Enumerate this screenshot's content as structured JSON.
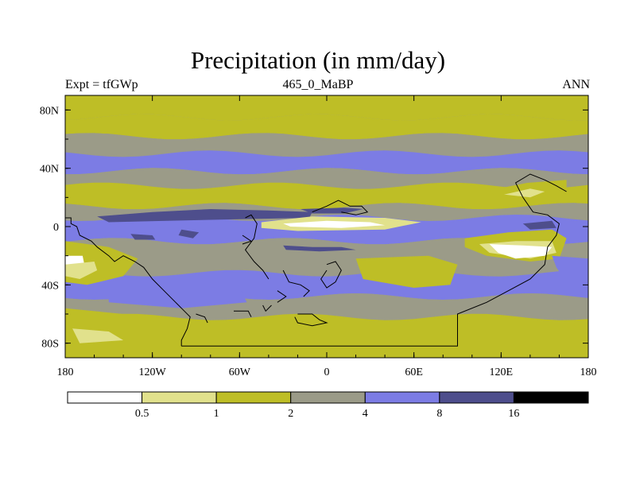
{
  "chart_data": {
    "type": "heatmap",
    "title": "Precipitation (in mm/day)",
    "left_label": "Expt = tfGWp",
    "center_label": "465_0_MaBP",
    "right_label": "ANN",
    "x_axis": {
      "range": [
        -180,
        180
      ],
      "ticks": [
        {
          "value": -180,
          "label": "180"
        },
        {
          "value": -120,
          "label": "120W"
        },
        {
          "value": -60,
          "label": "60W"
        },
        {
          "value": 0,
          "label": "0"
        },
        {
          "value": 60,
          "label": "60E"
        },
        {
          "value": 120,
          "label": "120E"
        },
        {
          "value": 180,
          "label": "180"
        }
      ]
    },
    "y_axis": {
      "range": [
        -90,
        90
      ],
      "ticks": [
        {
          "value": 80,
          "label": "80N"
        },
        {
          "value": 40,
          "label": "40N"
        },
        {
          "value": 0,
          "label": "0"
        },
        {
          "value": -40,
          "label": "40S"
        },
        {
          "value": -80,
          "label": "80S"
        }
      ]
    },
    "colorbar": {
      "levels": [
        "0.5",
        "1",
        "2",
        "4",
        "8",
        "16"
      ],
      "colors": [
        "#ffffff",
        "#e1e18c",
        "#bebe26",
        "#9b9b88",
        "#7c7ce4",
        "#4e4e8c",
        "#000000"
      ]
    },
    "zonal_bands": [
      {
        "lat_from": 90,
        "lat_to": 75,
        "category": 2
      },
      {
        "lat_from": 75,
        "lat_to": 62,
        "category": 2
      },
      {
        "lat_from": 62,
        "lat_to": 50,
        "category": 3
      },
      {
        "lat_from": 50,
        "lat_to": 38,
        "category": 4
      },
      {
        "lat_from": 38,
        "lat_to": 28,
        "category": 3
      },
      {
        "lat_from": 28,
        "lat_to": 14,
        "category": 2
      },
      {
        "lat_from": 14,
        "lat_to": 6,
        "category": 3
      },
      {
        "lat_from": 6,
        "lat_to": -10,
        "category": 4
      },
      {
        "lat_from": -10,
        "lat_to": -32,
        "category": 3
      },
      {
        "lat_from": -32,
        "lat_to": -48,
        "category": 4
      },
      {
        "lat_from": -48,
        "lat_to": -62,
        "category": 3
      },
      {
        "lat_from": -62,
        "lat_to": -78,
        "category": 2
      },
      {
        "lat_from": -78,
        "lat_to": -90,
        "category": 2
      }
    ]
  }
}
